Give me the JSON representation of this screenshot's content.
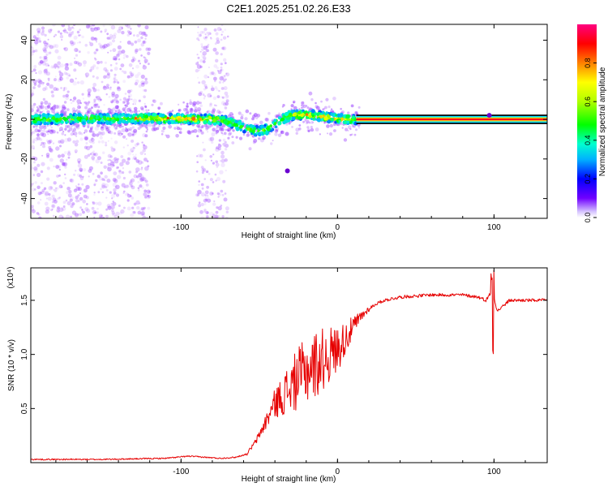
{
  "title": "C2E1.2025.251.02.26.E33",
  "colors": {
    "spectrum_ridge": "#ff0000",
    "snr_line": "#e60000",
    "scatter_point": "#9a40ff",
    "axis": "#000000"
  },
  "chart_data": [
    {
      "type": "heatmap",
      "title": "C2E1.2025.251.02.26.E33",
      "xlabel": "Height of straight line (km)",
      "ylabel": "Frequency (Hz)",
      "xlim": [
        -196,
        134
      ],
      "ylim": [
        -50,
        48
      ],
      "xticks": [
        -100,
        0,
        100
      ],
      "xtick_labels": [
        "-100",
        "0",
        "100"
      ],
      "yticks": [
        -40,
        -20,
        0,
        20,
        40
      ],
      "ytick_labels": [
        "-40",
        "-20",
        "0",
        "20",
        "40"
      ],
      "colorbar": {
        "label": "Normalized spectral amplitude",
        "range": [
          0,
          1
        ],
        "ticks": [
          0,
          0.2,
          0.4,
          0.6,
          0.8
        ],
        "tick_labels": [
          "0.0",
          "0.2",
          "0.4",
          "0.6",
          "0.8"
        ]
      },
      "center_ridge": {
        "x": [
          -196,
          -120,
          -80,
          -70,
          -60,
          -52,
          -45,
          -38,
          -30,
          -20,
          -10,
          0,
          10,
          134
        ],
        "y": [
          0,
          0.5,
          0,
          -1,
          -4,
          -6,
          -5,
          -1,
          2,
          2.5,
          1.5,
          0.5,
          0,
          0
        ],
        "saturated_from_x": 12
      },
      "outlier_points": [
        {
          "x": -32,
          "y": -26
        },
        {
          "x": 97,
          "y": 2
        }
      ]
    },
    {
      "type": "line",
      "xlabel": "Height of straight line (km)",
      "ylabel": "SNR (10 * v/v)",
      "y_scale_label": "(x10⁴)",
      "xlim": [
        -196,
        134
      ],
      "ylim": [
        0,
        1.8
      ],
      "xticks": [
        -100,
        0,
        100
      ],
      "xtick_labels": [
        "-100",
        "0",
        "100"
      ],
      "yticks": [
        0.5,
        1.0,
        1.5
      ],
      "ytick_labels": [
        "0.5",
        "1.0",
        "1.5"
      ],
      "series": [
        {
          "name": "SNR",
          "x": [
            -196,
            -150,
            -110,
            -95,
            -75,
            -65,
            -58,
            -52,
            -45,
            -40,
            -35,
            -30,
            -25,
            -20,
            -15,
            -10,
            -5,
            0,
            5,
            10,
            15,
            20,
            25,
            30,
            40,
            50,
            60,
            70,
            80,
            90,
            95,
            99,
            102,
            110,
            120,
            134
          ],
          "y": [
            0.03,
            0.03,
            0.04,
            0.06,
            0.04,
            0.05,
            0.08,
            0.2,
            0.4,
            0.55,
            0.62,
            0.7,
            0.78,
            0.85,
            0.9,
            0.95,
            1.0,
            1.05,
            1.15,
            1.25,
            1.35,
            1.42,
            1.47,
            1.5,
            1.53,
            1.54,
            1.55,
            1.55,
            1.55,
            1.53,
            1.5,
            1.6,
            1.4,
            1.5,
            1.5,
            1.5
          ],
          "noise_amplitude_peak": 0.6,
          "spike": {
            "x": 99,
            "max": 1.78,
            "min": 1.0
          }
        }
      ]
    }
  ]
}
